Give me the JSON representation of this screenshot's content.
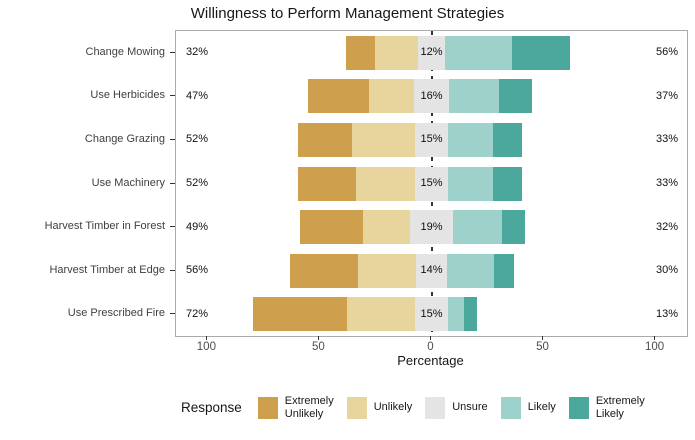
{
  "title": "Willingness to Perform Management Strategies",
  "x_axis": {
    "label": "Percentage",
    "tick_labels": [
      "100",
      "50",
      "0",
      "50",
      "100"
    ],
    "tick_values": [
      -100,
      -50,
      0,
      50,
      100
    ],
    "range": [
      -114,
      114
    ]
  },
  "legend": {
    "title": "Response",
    "items": [
      {
        "key": "extremely_unlikely",
        "label": "Extremely\nUnlikely",
        "color": "#CEA04E"
      },
      {
        "key": "unlikely",
        "label": "Unlikely",
        "color": "#E8D59E"
      },
      {
        "key": "unsure",
        "label": "Unsure",
        "color": "#E4E4E4"
      },
      {
        "key": "likely",
        "label": "Likely",
        "color": "#9DD1C9"
      },
      {
        "key": "extremely_likely",
        "label": "Extremely\nLikely",
        "color": "#4CA89D"
      }
    ]
  },
  "chart_data": {
    "type": "bar",
    "variant": "diverging-stacked-likert",
    "title": "Willingness to Perform Management Strategies",
    "xlabel": "Percentage",
    "ylabel": "",
    "xlim": [
      -114,
      114
    ],
    "grid": false,
    "legend_position": "bottom",
    "zero_reference_line": {
      "style": "dashed",
      "color": "#333333"
    },
    "categories": [
      "Change Mowing",
      "Use Herbicides",
      "Change Grazing",
      "Use Machinery",
      "Harvest Timber in Forest",
      "Harvest Timber at Edge",
      "Use Prescribed Fire"
    ],
    "series": [
      {
        "name": "Extremely Unlikely",
        "color": "#CEA04E",
        "values": [
          13,
          27,
          24,
          26,
          28,
          30,
          42
        ]
      },
      {
        "name": "Unlikely",
        "color": "#E8D59E",
        "values": [
          19,
          20,
          28,
          26,
          21,
          26,
          30
        ]
      },
      {
        "name": "Unsure",
        "color": "#E4E4E4",
        "values": [
          12,
          16,
          15,
          15,
          19,
          14,
          15
        ]
      },
      {
        "name": "Likely",
        "color": "#9DD1C9",
        "values": [
          30,
          22,
          20,
          20,
          22,
          21,
          7
        ]
      },
      {
        "name": "Extremely Likely",
        "color": "#4CA89D",
        "values": [
          26,
          15,
          13,
          13,
          10,
          9,
          6
        ]
      }
    ],
    "value_labels": {
      "negative_total": [
        "32%",
        "47%",
        "52%",
        "52%",
        "49%",
        "56%",
        "72%"
      ],
      "unsure": [
        "12%",
        "16%",
        "15%",
        "15%",
        "19%",
        "14%",
        "15%"
      ],
      "positive_total": [
        "56%",
        "37%",
        "33%",
        "33%",
        "32%",
        "30%",
        "13%"
      ]
    }
  }
}
